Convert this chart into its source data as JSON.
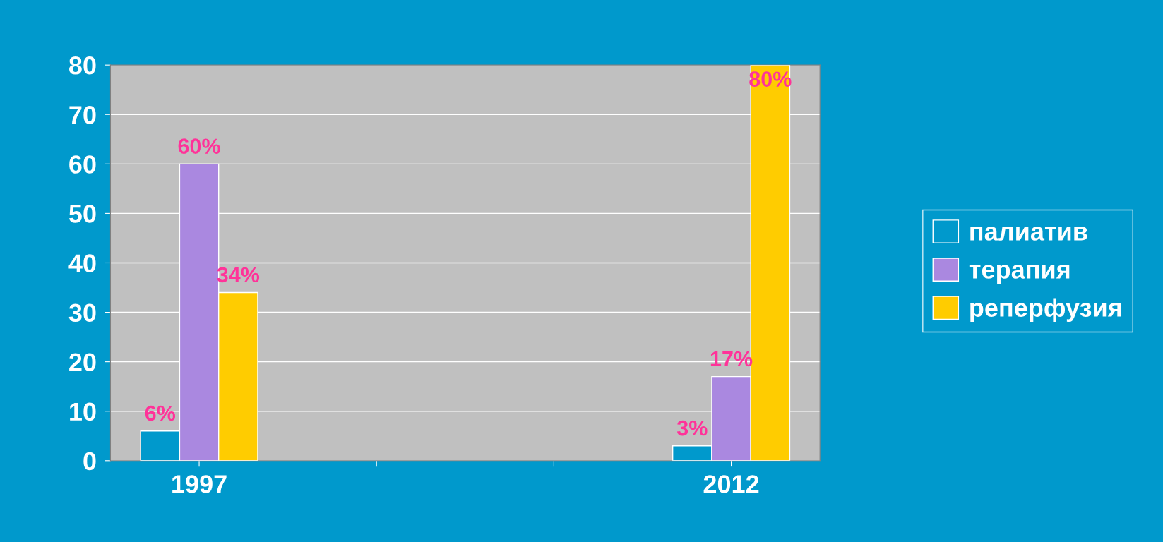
{
  "chart_data": {
    "type": "bar",
    "categories": [
      "1997",
      null,
      null,
      "2012"
    ],
    "series": [
      {
        "name": "палиатив",
        "color": "#0099cc",
        "values": [
          6,
          null,
          null,
          3
        ],
        "value_labels": [
          "6%",
          null,
          null,
          "3%"
        ]
      },
      {
        "name": "терапия",
        "color": "#aa88e0",
        "values": [
          60,
          null,
          null,
          17
        ],
        "value_labels": [
          "60%",
          null,
          null,
          "17%"
        ]
      },
      {
        "name": "реперфузия",
        "color": "#ffcc00",
        "values": [
          34,
          null,
          null,
          80
        ],
        "value_labels": [
          "34%",
          null,
          null,
          "80%"
        ]
      }
    ],
    "ylim": [
      0,
      80
    ],
    "yticks": [
      0,
      10,
      20,
      30,
      40,
      50,
      60,
      70,
      80
    ],
    "grid": "y",
    "legend": "right"
  }
}
